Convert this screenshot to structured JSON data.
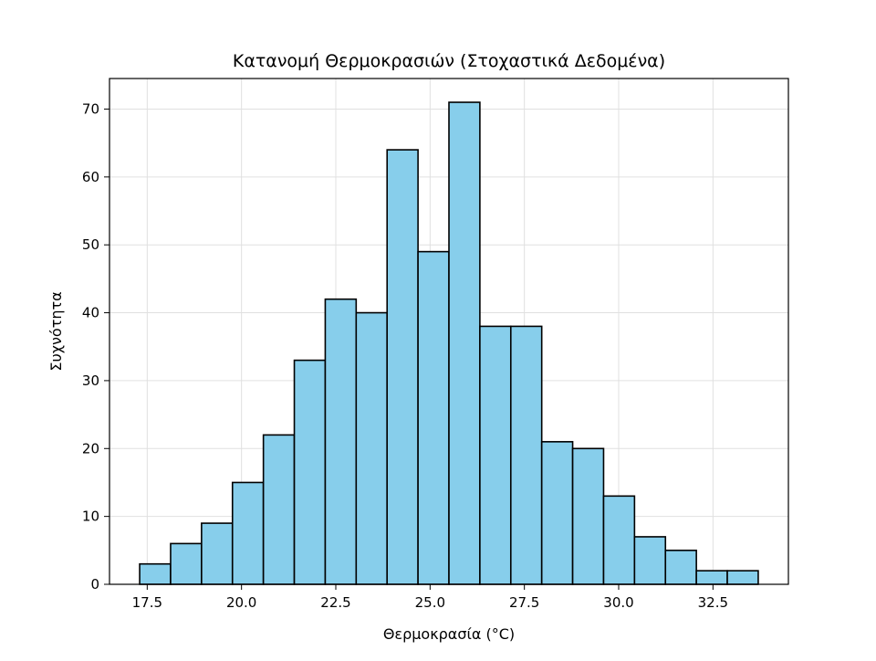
{
  "chart_data": {
    "type": "bar",
    "title": "Κατανομή Θερμοκρασιών (Στοχαστικά Δεδομένα)",
    "xlabel": "Θερμοκρασία (°C)",
    "ylabel": "Συχνότητα",
    "bin_edges": [
      17.3,
      18.12,
      18.94,
      19.76,
      20.58,
      21.4,
      22.22,
      23.04,
      23.86,
      24.68,
      25.5,
      26.32,
      27.14,
      27.96,
      28.78,
      29.6,
      30.42,
      31.24,
      32.06,
      32.88,
      33.7
    ],
    "values": [
      3,
      6,
      9,
      15,
      22,
      33,
      42,
      40,
      64,
      49,
      71,
      38,
      38,
      21,
      20,
      13,
      7,
      5,
      2,
      2
    ],
    "xlim": [
      16.5,
      34.5
    ],
    "ylim": [
      0,
      74.5
    ],
    "x_ticks": [
      17.5,
      20.0,
      22.5,
      25.0,
      27.5,
      30.0,
      32.5
    ],
    "x_tick_labels": [
      "17.5",
      "20.0",
      "22.5",
      "25.0",
      "27.5",
      "30.0",
      "32.5"
    ],
    "y_ticks": [
      0,
      10,
      20,
      30,
      40,
      50,
      60,
      70
    ],
    "y_tick_labels": [
      "0",
      "10",
      "20",
      "30",
      "40",
      "50",
      "60",
      "70"
    ],
    "grid": true,
    "colors": {
      "bar_fill": "#87CEEB",
      "bar_edge": "#000000",
      "grid": "#e0e0e0"
    }
  }
}
